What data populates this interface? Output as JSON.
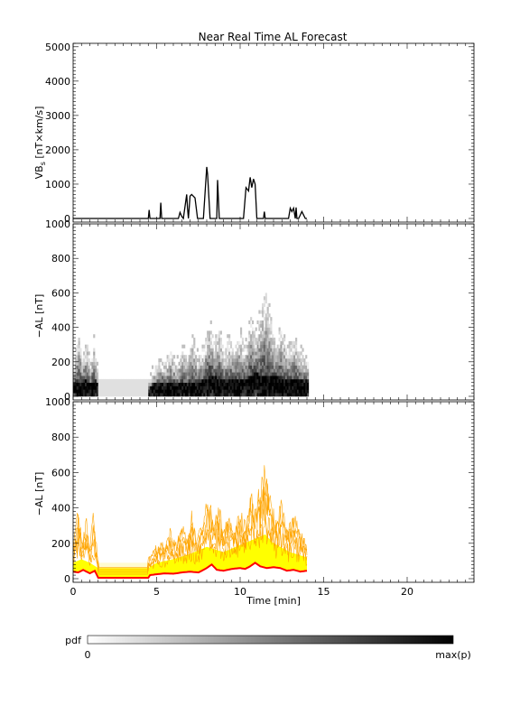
{
  "title": "Near Real Time AL Forecast",
  "colors": {
    "line": "#000000",
    "median": "#ff0000",
    "envelope": "#ffa500",
    "band": "#ffff00",
    "pale": "#fffbd0"
  },
  "colorbar": {
    "label": "pdf",
    "min_label": "0",
    "max_label": "max(p)"
  },
  "chart_data": [
    {
      "type": "line",
      "ylabel": "VB",
      "ylabel_sub": "s",
      "ylabel_unit": " [nT×km/s]",
      "ylim": [
        0,
        5100
      ],
      "yticks": [
        0,
        1000,
        2000,
        3000,
        4000,
        5000
      ],
      "xlim": [
        0,
        24
      ],
      "series": [
        {
          "x": [
            0,
            4.5,
            4.55,
            4.6,
            5.2,
            5.25,
            5.3,
            6.3,
            6.4,
            6.5,
            6.6,
            6.8,
            6.85,
            6.9,
            7.0,
            7.1,
            7.3,
            7.45,
            7.8,
            8.0,
            8.05,
            8.2,
            8.6,
            8.65,
            8.75,
            10.2,
            10.35,
            10.5,
            10.6,
            10.7,
            10.8,
            10.9,
            11.0,
            11.4,
            11.45,
            11.5,
            12.9,
            13.0,
            13.1,
            13.2,
            13.3,
            13.35,
            13.4,
            13.5,
            13.7,
            13.8,
            13.9,
            14.0
          ],
          "y": [
            0,
            0,
            250,
            0,
            0,
            460,
            0,
            0,
            180,
            60,
            0,
            700,
            300,
            0,
            650,
            700,
            600,
            0,
            0,
            1500,
            1300,
            0,
            0,
            1120,
            0,
            0,
            900,
            800,
            1200,
            900,
            1150,
            1000,
            0,
            0,
            200,
            0,
            0,
            300,
            200,
            300,
            0,
            320,
            0,
            0,
            200,
            100,
            0,
            0
          ]
        }
      ]
    },
    {
      "type": "heatmap",
      "ylabel": "−AL [nT]",
      "ylim": [
        0,
        1000
      ],
      "yticks": [
        0,
        200,
        400,
        600,
        800,
        1000
      ],
      "xlim": [
        0,
        24
      ],
      "x_range": [
        0,
        14
      ],
      "median": [
        [
          0,
          40
        ],
        [
          0.3,
          35
        ],
        [
          0.6,
          50
        ],
        [
          1.0,
          30
        ],
        [
          1.3,
          45
        ],
        [
          1.5,
          5
        ],
        [
          4.5,
          5
        ],
        [
          4.6,
          20
        ],
        [
          5,
          25
        ],
        [
          5.5,
          30
        ],
        [
          6,
          28
        ],
        [
          6.5,
          35
        ],
        [
          7,
          40
        ],
        [
          7.5,
          35
        ],
        [
          8,
          60
        ],
        [
          8.3,
          80
        ],
        [
          8.6,
          50
        ],
        [
          9,
          45
        ],
        [
          9.5,
          55
        ],
        [
          10,
          60
        ],
        [
          10.3,
          55
        ],
        [
          10.6,
          70
        ],
        [
          10.9,
          90
        ],
        [
          11.2,
          70
        ],
        [
          11.6,
          60
        ],
        [
          12,
          65
        ],
        [
          12.4,
          60
        ],
        [
          12.8,
          45
        ],
        [
          13.2,
          50
        ],
        [
          13.6,
          40
        ],
        [
          14,
          45
        ]
      ],
      "upper": [
        [
          0,
          150
        ],
        [
          0.3,
          380
        ],
        [
          0.5,
          200
        ],
        [
          0.8,
          300
        ],
        [
          1.0,
          150
        ],
        [
          1.2,
          330
        ],
        [
          1.5,
          100
        ],
        [
          4.5,
          100
        ],
        [
          4.8,
          150
        ],
        [
          5.2,
          200
        ],
        [
          5.5,
          180
        ],
        [
          5.8,
          250
        ],
        [
          6.2,
          180
        ],
        [
          6.5,
          280
        ],
        [
          6.8,
          200
        ],
        [
          7.1,
          330
        ],
        [
          7.4,
          220
        ],
        [
          7.8,
          300
        ],
        [
          8.1,
          420
        ],
        [
          8.4,
          300
        ],
        [
          8.7,
          380
        ],
        [
          9.0,
          250
        ],
        [
          9.3,
          330
        ],
        [
          9.6,
          260
        ],
        [
          10.0,
          350
        ],
        [
          10.3,
          280
        ],
        [
          10.6,
          450
        ],
        [
          10.9,
          350
        ],
        [
          11.2,
          500
        ],
        [
          11.5,
          600
        ],
        [
          11.8,
          420
        ],
        [
          12.1,
          300
        ],
        [
          12.4,
          400
        ],
        [
          12.8,
          260
        ],
        [
          13.2,
          320
        ],
        [
          13.6,
          250
        ],
        [
          14,
          180
        ]
      ]
    },
    {
      "type": "area",
      "xlabel": "Time [min]",
      "ylabel": "−AL [nT]",
      "ylim": [
        0,
        1000
      ],
      "yticks": [
        0,
        200,
        400,
        600,
        800,
        1000
      ],
      "xlim": [
        0,
        24
      ],
      "xticks": [
        0,
        5,
        10,
        15,
        20
      ],
      "median": [
        [
          0,
          40
        ],
        [
          0.3,
          35
        ],
        [
          0.6,
          50
        ],
        [
          1.0,
          30
        ],
        [
          1.3,
          45
        ],
        [
          1.5,
          5
        ],
        [
          4.5,
          5
        ],
        [
          4.6,
          20
        ],
        [
          5,
          25
        ],
        [
          5.5,
          30
        ],
        [
          6,
          28
        ],
        [
          6.5,
          35
        ],
        [
          7,
          40
        ],
        [
          7.5,
          35
        ],
        [
          8,
          60
        ],
        [
          8.3,
          80
        ],
        [
          8.6,
          50
        ],
        [
          9,
          45
        ],
        [
          9.5,
          55
        ],
        [
          10,
          60
        ],
        [
          10.3,
          55
        ],
        [
          10.6,
          70
        ],
        [
          10.9,
          90
        ],
        [
          11.2,
          70
        ],
        [
          11.6,
          60
        ],
        [
          12,
          65
        ],
        [
          12.4,
          60
        ],
        [
          12.8,
          45
        ],
        [
          13.2,
          50
        ],
        [
          13.6,
          40
        ],
        [
          14,
          45
        ]
      ],
      "upper": [
        [
          0,
          150
        ],
        [
          0.3,
          380
        ],
        [
          0.5,
          200
        ],
        [
          0.8,
          300
        ],
        [
          1.0,
          150
        ],
        [
          1.2,
          330
        ],
        [
          1.5,
          100
        ],
        [
          4.5,
          100
        ],
        [
          4.8,
          150
        ],
        [
          5.2,
          200
        ],
        [
          5.5,
          180
        ],
        [
          5.8,
          250
        ],
        [
          6.2,
          180
        ],
        [
          6.5,
          280
        ],
        [
          6.8,
          200
        ],
        [
          7.1,
          330
        ],
        [
          7.4,
          220
        ],
        [
          7.8,
          300
        ],
        [
          8.1,
          420
        ],
        [
          8.4,
          300
        ],
        [
          8.7,
          380
        ],
        [
          9.0,
          250
        ],
        [
          9.3,
          330
        ],
        [
          9.6,
          260
        ],
        [
          10.0,
          350
        ],
        [
          10.3,
          280
        ],
        [
          10.6,
          450
        ],
        [
          10.9,
          350
        ],
        [
          11.2,
          500
        ],
        [
          11.5,
          600
        ],
        [
          11.8,
          420
        ],
        [
          12.1,
          300
        ],
        [
          12.4,
          400
        ],
        [
          12.8,
          260
        ],
        [
          13.2,
          320
        ],
        [
          13.6,
          250
        ],
        [
          14,
          180
        ]
      ],
      "band_upper": [
        [
          0,
          90
        ],
        [
          0.5,
          110
        ],
        [
          1,
          90
        ],
        [
          1.5,
          60
        ],
        [
          4.5,
          60
        ],
        [
          5,
          90
        ],
        [
          6,
          110
        ],
        [
          7,
          140
        ],
        [
          8,
          180
        ],
        [
          9,
          150
        ],
        [
          10,
          190
        ],
        [
          11,
          230
        ],
        [
          11.5,
          250
        ],
        [
          12,
          200
        ],
        [
          13,
          150
        ],
        [
          14,
          120
        ]
      ]
    }
  ]
}
